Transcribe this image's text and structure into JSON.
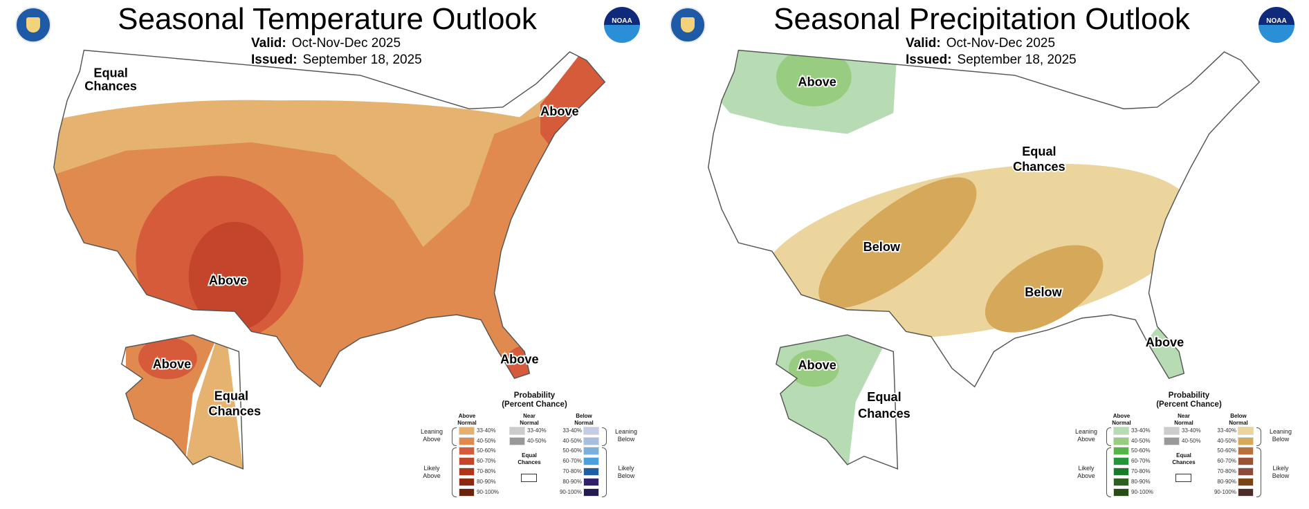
{
  "panels": [
    {
      "id": "temperature",
      "title": "Seasonal Temperature Outlook",
      "valid_label": "Valid:",
      "valid_value": "Oct-Nov-Dec 2025",
      "issued_label": "Issued:",
      "issued_value": "September 18, 2025",
      "noaa_logo_text": "NOAA",
      "map_labels": [
        "Equal",
        "Chances",
        "Above",
        "Above",
        "Above",
        "Above",
        "Equal",
        "Chances"
      ],
      "colors": {
        "above_33_40": "#e5b26f",
        "above_40_50": "#e08a50",
        "above_50_60": "#d65b3a",
        "above_60_70": "#c4452b"
      },
      "legend": {
        "title": [
          "Probability",
          "(Percent Chance)"
        ],
        "col_above": [
          "Above",
          "Normal"
        ],
        "col_near": [
          "Near",
          "Normal"
        ],
        "col_below": [
          "Below",
          "Normal"
        ],
        "leaning_above": [
          "Leaning",
          "Above"
        ],
        "likely_above": [
          "Likely",
          "Above"
        ],
        "leaning_below": [
          "Leaning",
          "Below"
        ],
        "likely_below": [
          "Likely",
          "Below"
        ],
        "equal_chances": [
          "Equal",
          "Chances"
        ],
        "ranges": [
          "33-40%",
          "40-50%",
          "50-60%",
          "60-70%",
          "70-80%",
          "80-90%",
          "90-100%"
        ],
        "near_ranges": [
          "33-40%",
          "40-50%"
        ],
        "above_colors": [
          "#e3b06f",
          "#e08a50",
          "#d65b3a",
          "#c4452b",
          "#ae3519",
          "#8c2a10",
          "#6b230c"
        ],
        "near_colors": [
          "#cccccc",
          "#999999"
        ],
        "below_colors": [
          "#c5cde6",
          "#a6bedf",
          "#7bb0de",
          "#4aa0dc",
          "#1f5da5",
          "#31206c",
          "#231a4f"
        ]
      }
    },
    {
      "id": "precipitation",
      "title": "Seasonal Precipitation Outlook",
      "valid_label": "Valid:",
      "valid_value": "Oct-Nov-Dec 2025",
      "issued_label": "Issued:",
      "issued_value": "September 18, 2025",
      "noaa_logo_text": "NOAA",
      "map_labels": [
        "Above",
        "Equal",
        "Chances",
        "Below",
        "Below",
        "Above",
        "Above",
        "Equal",
        "Chances"
      ],
      "colors": {
        "above_33_40": "#b7dcb3",
        "above_40_50": "#98cd81",
        "below_33_40": "#ecd59c",
        "below_40_50": "#d6a85a"
      },
      "legend": {
        "title": [
          "Probability",
          "(Percent Chance)"
        ],
        "col_above": [
          "Above",
          "Normal"
        ],
        "col_near": [
          "Near",
          "Normal"
        ],
        "col_below": [
          "Below",
          "Normal"
        ],
        "leaning_above": [
          "Leaning",
          "Above"
        ],
        "likely_above": [
          "Likely",
          "Above"
        ],
        "leaning_below": [
          "Leaning",
          "Below"
        ],
        "likely_below": [
          "Likely",
          "Below"
        ],
        "equal_chances": [
          "Equal",
          "Chances"
        ],
        "ranges": [
          "33-40%",
          "40-50%",
          "50-60%",
          "60-70%",
          "70-80%",
          "80-90%",
          "90-100%"
        ],
        "near_ranges": [
          "33-40%",
          "40-50%"
        ],
        "above_colors": [
          "#b7dcb3",
          "#98cd81",
          "#55b54a",
          "#23963a",
          "#1a7a2b",
          "#2d5f20",
          "#274d15"
        ],
        "near_colors": [
          "#cccccc",
          "#999999"
        ],
        "below_colors": [
          "#ecd59c",
          "#d6a85a",
          "#b8703f",
          "#9b5336",
          "#8f4a3e",
          "#7a4414",
          "#4e2c27"
        ]
      }
    }
  ]
}
